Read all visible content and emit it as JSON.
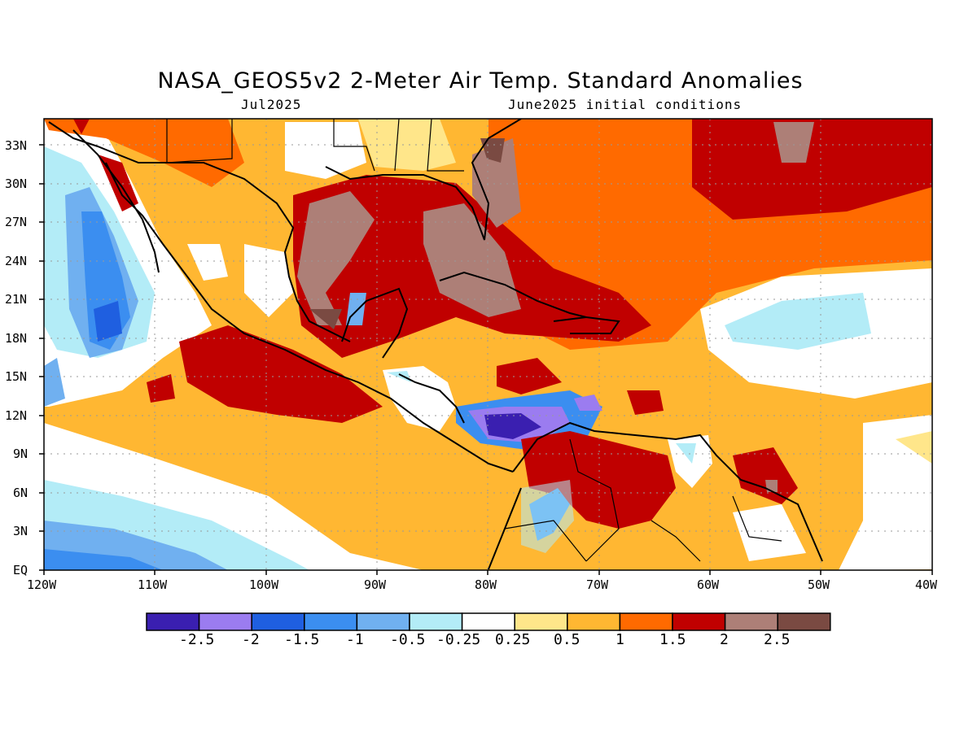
{
  "title": "NASA_GEOS5v2 2-Meter Air Temp. Standard Anomalies",
  "subtitle_left": "Jul2025",
  "subtitle_right": "June2025 initial conditions",
  "lat_labels": [
    "33N",
    "30N",
    "27N",
    "24N",
    "21N",
    "18N",
    "15N",
    "12N",
    "9N",
    "6N",
    "3N",
    "EQ"
  ],
  "lon_labels": [
    "120W",
    "110W",
    "100W",
    "90W",
    "80W",
    "70W",
    "60W",
    "50W",
    "40W"
  ],
  "colorbar": {
    "labels": [
      "-2.5",
      "-2",
      "-1.5",
      "-1",
      "-0.5",
      "-0.25",
      "0.25",
      "0.5",
      "1",
      "1.5",
      "2",
      "2.5"
    ],
    "colors": [
      "#3a1fb0",
      "#9b7cf0",
      "#1f5fe0",
      "#3b8ef0",
      "#70b0f0",
      "#b3ecf7",
      "#ffffff",
      "#ffe68a",
      "#ffb732",
      "#ff6a00",
      "#c00000",
      "#ad7f77",
      "#7a4a42"
    ]
  }
}
